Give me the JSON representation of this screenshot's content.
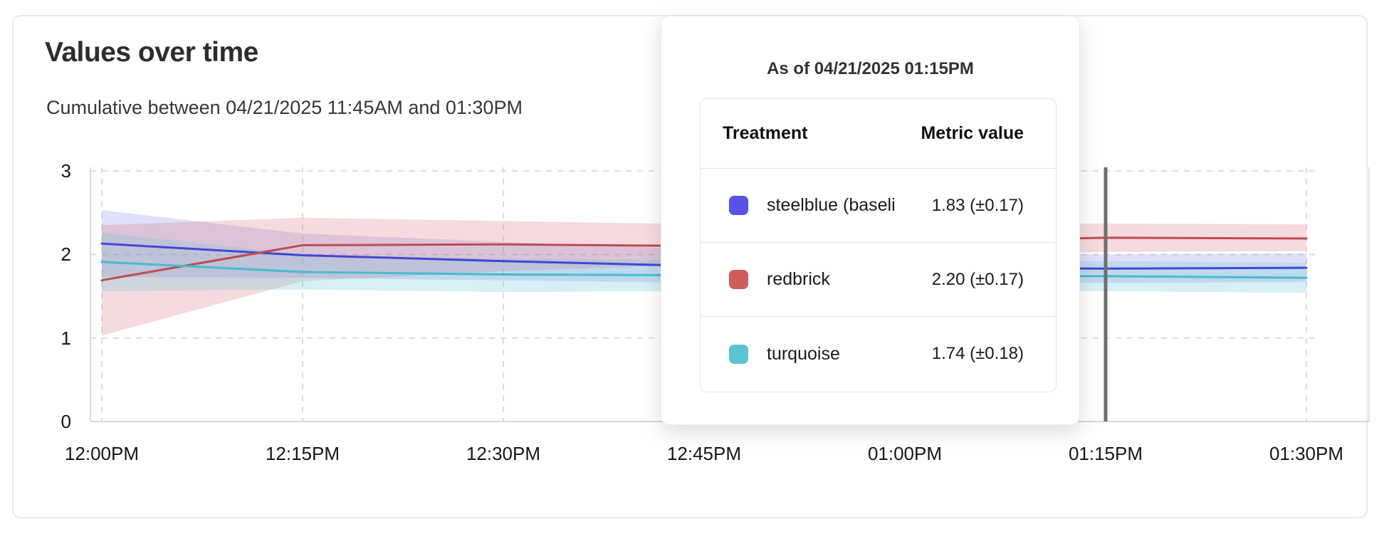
{
  "chart_data": {
    "type": "line",
    "title": "Values over time",
    "subtitle": "Cumulative between 04/21/2025 11:45AM and 01:30PM",
    "x_ticks": [
      "12:00PM",
      "12:15PM",
      "12:30PM",
      "12:45PM",
      "01:00PM",
      "01:15PM",
      "01:30PM"
    ],
    "y_ticks": [
      0,
      1,
      2,
      3
    ],
    "ylim": [
      0,
      3
    ],
    "grid": "dashed",
    "legend_position": "none",
    "hover_x": "01:15PM",
    "hover_line_color": "#6f6f6f",
    "series": [
      {
        "name": "steelblue (baseline)",
        "color": "#4247d0",
        "band_color": "rgba(95,99,226,0.20)",
        "values": [
          2.13,
          1.99,
          1.92,
          1.86,
          1.84,
          1.83,
          1.84
        ],
        "upper": [
          2.53,
          2.25,
          2.15,
          2.06,
          2.02,
          2.0,
          2.01
        ],
        "lower": [
          1.73,
          1.72,
          1.69,
          1.66,
          1.66,
          1.66,
          1.67
        ]
      },
      {
        "name": "redbrick",
        "color": "#c04b4f",
        "band_color": "rgba(208,92,100,0.22)",
        "values": [
          1.69,
          2.11,
          2.12,
          2.1,
          2.15,
          2.2,
          2.19
        ],
        "upper": [
          2.35,
          2.44,
          2.4,
          2.36,
          2.36,
          2.37,
          2.36
        ],
        "lower": [
          1.03,
          1.68,
          1.8,
          1.88,
          1.96,
          2.03,
          2.04
        ]
      },
      {
        "name": "turquoise",
        "color": "#46bccf",
        "band_color": "rgba(99,198,216,0.26)",
        "values": [
          1.91,
          1.79,
          1.76,
          1.75,
          1.74,
          1.74,
          1.72
        ],
        "upper": [
          2.26,
          2.0,
          1.95,
          1.93,
          1.92,
          1.92,
          1.9
        ],
        "lower": [
          1.56,
          1.58,
          1.55,
          1.56,
          1.56,
          1.56,
          1.54
        ]
      }
    ]
  },
  "tooltip": {
    "title": "As of 04/21/2025 01:15PM",
    "col_treatment": "Treatment",
    "col_value": "Metric value",
    "rows": [
      {
        "label": "steelblue  (baseli",
        "swatch": "#5653e6",
        "value": "1.83 (±0.17)"
      },
      {
        "label": "redbrick",
        "swatch": "#d05c5c",
        "value": "2.20 (±0.17)"
      },
      {
        "label": "turquoise",
        "swatch": "#5ac4d3",
        "value": "1.74 (±0.18)"
      }
    ]
  }
}
